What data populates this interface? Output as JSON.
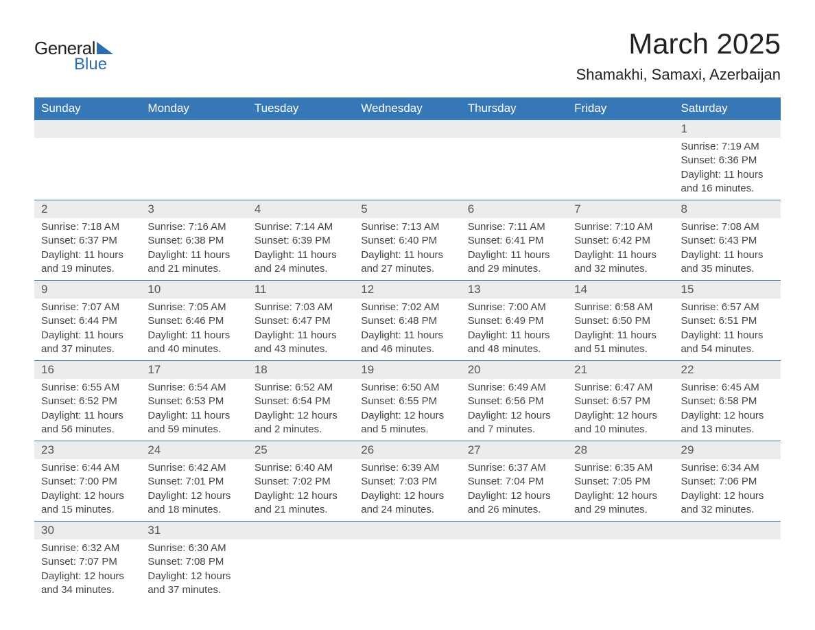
{
  "logo": {
    "line1": "General",
    "line2": "Blue"
  },
  "title": "March 2025",
  "location": "Shamakhi, Samaxi, Azerbaijan",
  "colors": {
    "header_bg": "#3678b7",
    "header_text": "#ffffff",
    "daynum_bg": "#ececec",
    "row_border": "#3678b7",
    "logo_accent": "#2d6cad",
    "text": "#333333",
    "background": "#ffffff"
  },
  "typography": {
    "title_fontsize": 42,
    "location_fontsize": 22,
    "header_fontsize": 17,
    "daynum_fontsize": 17,
    "body_fontsize": 15,
    "font_family": "Arial"
  },
  "day_headers": [
    "Sunday",
    "Monday",
    "Tuesday",
    "Wednesday",
    "Thursday",
    "Friday",
    "Saturday"
  ],
  "weeks": [
    [
      null,
      null,
      null,
      null,
      null,
      null,
      {
        "n": "1",
        "sunrise": "7:19 AM",
        "sunset": "6:36 PM",
        "daylight": "11 hours and 16 minutes."
      }
    ],
    [
      {
        "n": "2",
        "sunrise": "7:18 AM",
        "sunset": "6:37 PM",
        "daylight": "11 hours and 19 minutes."
      },
      {
        "n": "3",
        "sunrise": "7:16 AM",
        "sunset": "6:38 PM",
        "daylight": "11 hours and 21 minutes."
      },
      {
        "n": "4",
        "sunrise": "7:14 AM",
        "sunset": "6:39 PM",
        "daylight": "11 hours and 24 minutes."
      },
      {
        "n": "5",
        "sunrise": "7:13 AM",
        "sunset": "6:40 PM",
        "daylight": "11 hours and 27 minutes."
      },
      {
        "n": "6",
        "sunrise": "7:11 AM",
        "sunset": "6:41 PM",
        "daylight": "11 hours and 29 minutes."
      },
      {
        "n": "7",
        "sunrise": "7:10 AM",
        "sunset": "6:42 PM",
        "daylight": "11 hours and 32 minutes."
      },
      {
        "n": "8",
        "sunrise": "7:08 AM",
        "sunset": "6:43 PM",
        "daylight": "11 hours and 35 minutes."
      }
    ],
    [
      {
        "n": "9",
        "sunrise": "7:07 AM",
        "sunset": "6:44 PM",
        "daylight": "11 hours and 37 minutes."
      },
      {
        "n": "10",
        "sunrise": "7:05 AM",
        "sunset": "6:46 PM",
        "daylight": "11 hours and 40 minutes."
      },
      {
        "n": "11",
        "sunrise": "7:03 AM",
        "sunset": "6:47 PM",
        "daylight": "11 hours and 43 minutes."
      },
      {
        "n": "12",
        "sunrise": "7:02 AM",
        "sunset": "6:48 PM",
        "daylight": "11 hours and 46 minutes."
      },
      {
        "n": "13",
        "sunrise": "7:00 AM",
        "sunset": "6:49 PM",
        "daylight": "11 hours and 48 minutes."
      },
      {
        "n": "14",
        "sunrise": "6:58 AM",
        "sunset": "6:50 PM",
        "daylight": "11 hours and 51 minutes."
      },
      {
        "n": "15",
        "sunrise": "6:57 AM",
        "sunset": "6:51 PM",
        "daylight": "11 hours and 54 minutes."
      }
    ],
    [
      {
        "n": "16",
        "sunrise": "6:55 AM",
        "sunset": "6:52 PM",
        "daylight": "11 hours and 56 minutes."
      },
      {
        "n": "17",
        "sunrise": "6:54 AM",
        "sunset": "6:53 PM",
        "daylight": "11 hours and 59 minutes."
      },
      {
        "n": "18",
        "sunrise": "6:52 AM",
        "sunset": "6:54 PM",
        "daylight": "12 hours and 2 minutes."
      },
      {
        "n": "19",
        "sunrise": "6:50 AM",
        "sunset": "6:55 PM",
        "daylight": "12 hours and 5 minutes."
      },
      {
        "n": "20",
        "sunrise": "6:49 AM",
        "sunset": "6:56 PM",
        "daylight": "12 hours and 7 minutes."
      },
      {
        "n": "21",
        "sunrise": "6:47 AM",
        "sunset": "6:57 PM",
        "daylight": "12 hours and 10 minutes."
      },
      {
        "n": "22",
        "sunrise": "6:45 AM",
        "sunset": "6:58 PM",
        "daylight": "12 hours and 13 minutes."
      }
    ],
    [
      {
        "n": "23",
        "sunrise": "6:44 AM",
        "sunset": "7:00 PM",
        "daylight": "12 hours and 15 minutes."
      },
      {
        "n": "24",
        "sunrise": "6:42 AM",
        "sunset": "7:01 PM",
        "daylight": "12 hours and 18 minutes."
      },
      {
        "n": "25",
        "sunrise": "6:40 AM",
        "sunset": "7:02 PM",
        "daylight": "12 hours and 21 minutes."
      },
      {
        "n": "26",
        "sunrise": "6:39 AM",
        "sunset": "7:03 PM",
        "daylight": "12 hours and 24 minutes."
      },
      {
        "n": "27",
        "sunrise": "6:37 AM",
        "sunset": "7:04 PM",
        "daylight": "12 hours and 26 minutes."
      },
      {
        "n": "28",
        "sunrise": "6:35 AM",
        "sunset": "7:05 PM",
        "daylight": "12 hours and 29 minutes."
      },
      {
        "n": "29",
        "sunrise": "6:34 AM",
        "sunset": "7:06 PM",
        "daylight": "12 hours and 32 minutes."
      }
    ],
    [
      {
        "n": "30",
        "sunrise": "6:32 AM",
        "sunset": "7:07 PM",
        "daylight": "12 hours and 34 minutes."
      },
      {
        "n": "31",
        "sunrise": "6:30 AM",
        "sunset": "7:08 PM",
        "daylight": "12 hours and 37 minutes."
      },
      null,
      null,
      null,
      null,
      null
    ]
  ],
  "labels": {
    "sunrise": "Sunrise:",
    "sunset": "Sunset:",
    "daylight": "Daylight:"
  }
}
